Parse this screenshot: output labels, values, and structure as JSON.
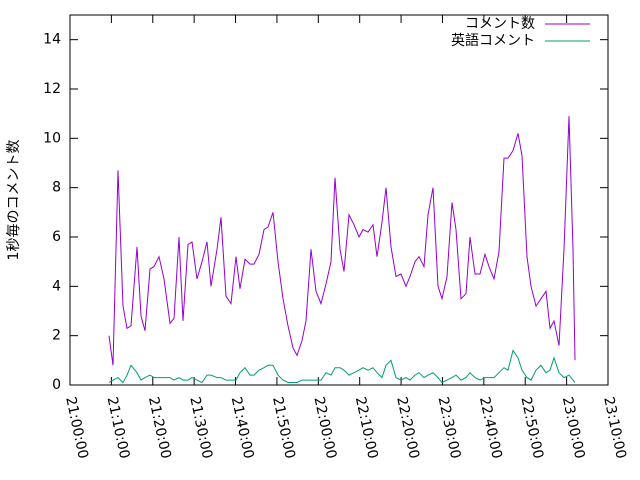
{
  "chart_data": {
    "type": "line",
    "ylabel": "1秒毎のコメント数",
    "legend": "top right",
    "xlim": [
      "21:00:00",
      "23:10:00"
    ],
    "xticks": [
      "21:00:00",
      "21:10:00",
      "21:20:00",
      "21:30:00",
      "21:40:00",
      "21:50:00",
      "22:00:00",
      "22:10:00",
      "22:20:00",
      "22:30:00",
      "22:40:00",
      "22:50:00",
      "23:00:00",
      "23:10:00"
    ],
    "ylim": [
      0,
      15
    ],
    "yticks": [
      0,
      2,
      4,
      6,
      8,
      10,
      12,
      14
    ],
    "x": [
      "21:09:25",
      "21:10:23",
      "21:11:36",
      "21:12:48",
      "21:13:46",
      "21:14:44",
      "21:16:11",
      "21:17:09",
      "21:18:07",
      "21:19:20",
      "21:20:18",
      "21:21:30",
      "21:22:43",
      "21:24:10",
      "21:25:08",
      "21:26:20",
      "21:27:18",
      "21:28:31",
      "21:29:29",
      "21:30:41",
      "21:31:54",
      "21:33:06",
      "21:34:04",
      "21:35:31",
      "21:36:29",
      "21:37:41",
      "21:38:54",
      "21:40:07",
      "21:41:05",
      "21:42:17",
      "21:43:29",
      "21:44:28",
      "21:45:40",
      "21:46:53",
      "21:47:50",
      "21:49:03",
      "21:50:16",
      "21:51:28",
      "21:52:41",
      "21:53:53",
      "21:54:51",
      "21:56:04",
      "21:57:02",
      "21:58:14",
      "21:59:26",
      "22:00:39",
      "22:01:52",
      "22:03:04",
      "22:04:02",
      "22:05:14",
      "22:06:13",
      "22:07:25",
      "22:08:37",
      "22:09:50",
      "22:10:48",
      "22:12:01",
      "22:13:13",
      "22:14:11",
      "22:15:23",
      "22:16:22",
      "22:17:34",
      "22:18:46",
      "22:19:59",
      "22:21:11",
      "22:22:10",
      "22:23:22",
      "22:24:20",
      "22:25:32",
      "22:26:30",
      "22:27:43",
      "22:28:55",
      "22:29:53",
      "22:31:06",
      "22:32:18",
      "22:33:16",
      "22:34:29",
      "22:35:41",
      "22:36:39",
      "22:37:52",
      "22:39:04",
      "22:40:17",
      "22:41:15",
      "22:42:27",
      "22:43:40",
      "22:44:52",
      "22:45:50",
      "22:47:03",
      "22:48:15",
      "22:49:13",
      "22:50:26",
      "22:51:24",
      "22:52:36",
      "22:53:49",
      "22:55:01",
      "22:55:59",
      "22:56:57",
      "22:58:10",
      "22:59:22",
      "23:00:35",
      "23:01:33",
      "23:02:01"
    ],
    "series": [
      {
        "name": "コメント数",
        "color": "#9400d3",
        "values": [
          2.0,
          0.8,
          8.7,
          3.2,
          2.3,
          2.4,
          5.6,
          2.8,
          2.2,
          4.7,
          4.8,
          5.2,
          4.3,
          2.5,
          2.7,
          6.0,
          2.6,
          5.7,
          5.8,
          4.3,
          5.0,
          5.8,
          4.0,
          5.5,
          6.8,
          3.6,
          3.3,
          5.2,
          3.9,
          5.1,
          4.9,
          4.9,
          5.3,
          6.3,
          6.4,
          7.0,
          5.0,
          3.5,
          2.4,
          1.5,
          1.2,
          1.8,
          2.6,
          5.5,
          3.8,
          3.3,
          4.1,
          5.0,
          8.4,
          5.5,
          4.6,
          6.9,
          6.5,
          6.0,
          6.3,
          6.2,
          6.5,
          5.2,
          6.6,
          8.0,
          5.6,
          4.4,
          4.5,
          4.0,
          4.4,
          5.0,
          5.2,
          4.8,
          6.9,
          8.0,
          4.0,
          3.5,
          4.4,
          7.4,
          6.3,
          3.5,
          3.7,
          6.0,
          4.5,
          4.5,
          5.3,
          4.8,
          4.3,
          5.4,
          9.2,
          9.2,
          9.5,
          10.2,
          9.3,
          5.2,
          4.0,
          3.2,
          3.5,
          3.8,
          2.3,
          2.6,
          1.6,
          5.5,
          10.9,
          5.5,
          1.0
        ]
      },
      {
        "name": "英語コメント",
        "color": "#009e73",
        "values": [
          0.1,
          0.2,
          0.3,
          0.1,
          0.4,
          0.8,
          0.5,
          0.2,
          0.3,
          0.4,
          0.3,
          0.3,
          0.3,
          0.3,
          0.2,
          0.3,
          0.2,
          0.2,
          0.3,
          0.2,
          0.1,
          0.4,
          0.4,
          0.3,
          0.3,
          0.2,
          0.2,
          0.2,
          0.5,
          0.7,
          0.4,
          0.4,
          0.6,
          0.7,
          0.8,
          0.8,
          0.4,
          0.2,
          0.1,
          0.1,
          0.1,
          0.2,
          0.2,
          0.2,
          0.2,
          0.2,
          0.5,
          0.4,
          0.7,
          0.7,
          0.6,
          0.4,
          0.5,
          0.6,
          0.7,
          0.6,
          0.7,
          0.5,
          0.3,
          0.8,
          1.0,
          0.3,
          0.2,
          0.3,
          0.2,
          0.4,
          0.5,
          0.3,
          0.4,
          0.5,
          0.3,
          0.1,
          0.2,
          0.3,
          0.4,
          0.2,
          0.3,
          0.5,
          0.3,
          0.2,
          0.3,
          0.3,
          0.3,
          0.5,
          0.7,
          0.6,
          1.4,
          1.1,
          0.6,
          0.3,
          0.2,
          0.6,
          0.8,
          0.5,
          0.6,
          1.1,
          0.5,
          0.3,
          0.4,
          0.2,
          0.1
        ]
      }
    ]
  }
}
